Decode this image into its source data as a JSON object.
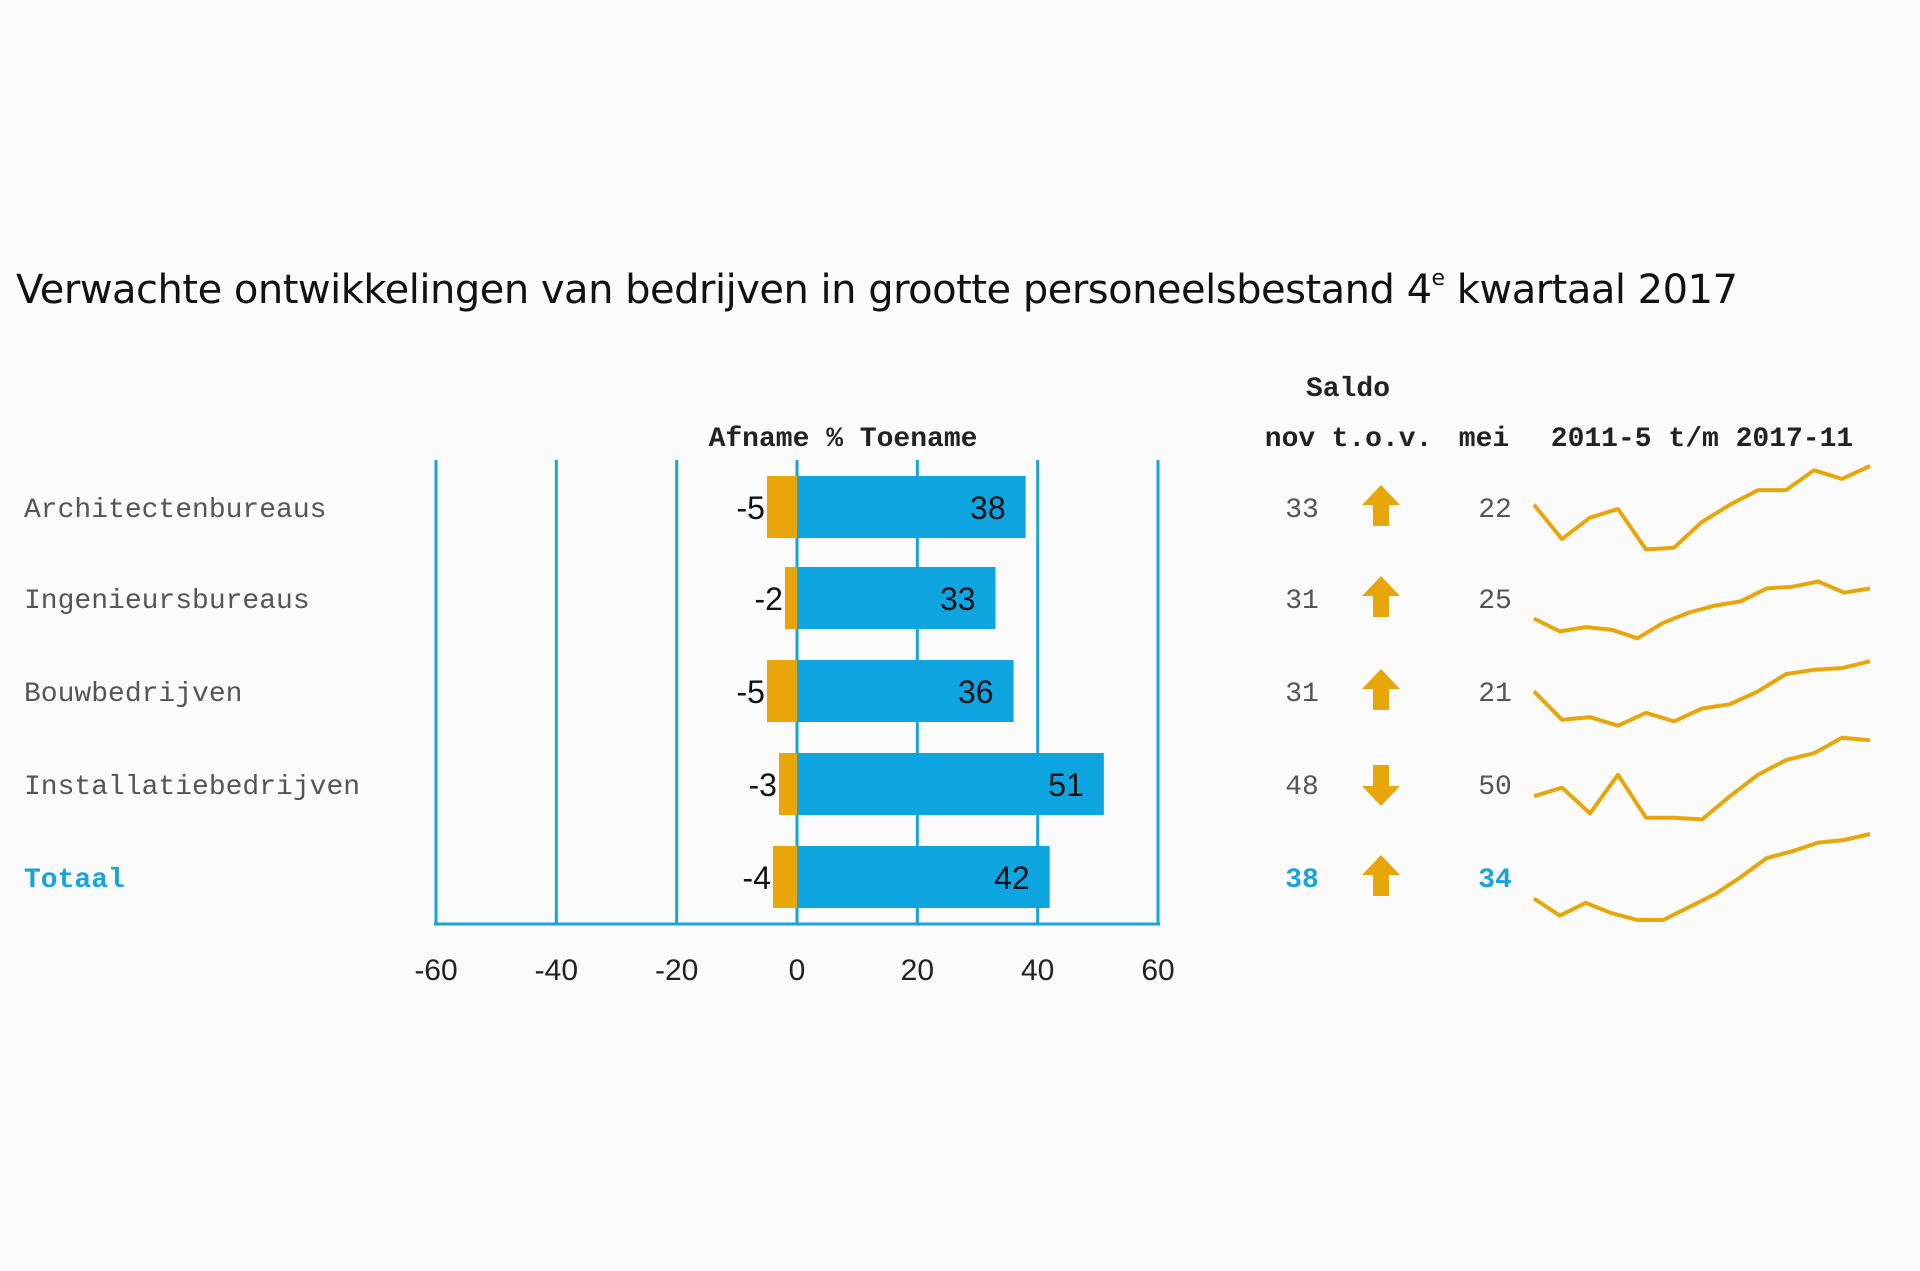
{
  "title": {
    "main": "Verwachte ontwikkelingen van bedrijven in grootte personeelsbestand 4",
    "sup": "e",
    "tail": " kwartaal 2017"
  },
  "colors": {
    "increase": "#0ea5e0",
    "decrease": "#e8a60b",
    "axis": "#1aa3d9",
    "total_text": "#1aa3d9",
    "text": "#555555"
  },
  "chart_data": {
    "type": "bar",
    "orientation": "horizontal",
    "axis_label": "Afname % Toename",
    "xlim": [
      -60,
      60
    ],
    "x_ticks": [
      -60,
      -40,
      -20,
      0,
      20,
      40,
      60
    ],
    "categories": [
      "Architectenbureaus",
      "Ingenieursbureaus",
      "Bouwbedrijven",
      "Installatiebedrijven",
      "Totaal"
    ],
    "series": [
      {
        "name": "Afname",
        "values": [
          -5,
          -2,
          -5,
          -3,
          -4
        ]
      },
      {
        "name": "Toename",
        "values": [
          38,
          33,
          36,
          51,
          42
        ]
      }
    ],
    "table": {
      "header_top": "Saldo",
      "headers": [
        "nov",
        "t.o.v.",
        "mei",
        "2011-5 t/m 2017-11"
      ],
      "nov": [
        33,
        31,
        31,
        48,
        38
      ],
      "trend": [
        "up",
        "up",
        "up",
        "down",
        "up"
      ],
      "mei": [
        22,
        25,
        21,
        50,
        34
      ]
    },
    "sparklines": [
      [
        0.55,
        0.15,
        0.4,
        0.5,
        0.03,
        0.05,
        0.35,
        0.55,
        0.72,
        0.72,
        0.95,
        0.85,
        1.0
      ],
      [
        0.25,
        0.1,
        0.15,
        0.12,
        0.02,
        0.2,
        0.32,
        0.4,
        0.45,
        0.6,
        0.62,
        0.68,
        0.55,
        0.6
      ],
      [
        0.45,
        0.12,
        0.15,
        0.05,
        0.2,
        0.1,
        0.25,
        0.3,
        0.45,
        0.65,
        0.7,
        0.72,
        0.8
      ],
      [
        0.3,
        0.4,
        0.1,
        0.55,
        0.05,
        0.05,
        0.03,
        0.3,
        0.55,
        0.72,
        0.8,
        0.98,
        0.95
      ],
      [
        0.25,
        0.05,
        0.2,
        0.08,
        0.0,
        0.0,
        0.15,
        0.3,
        0.5,
        0.72,
        0.8,
        0.9,
        0.93,
        1.0
      ]
    ]
  }
}
